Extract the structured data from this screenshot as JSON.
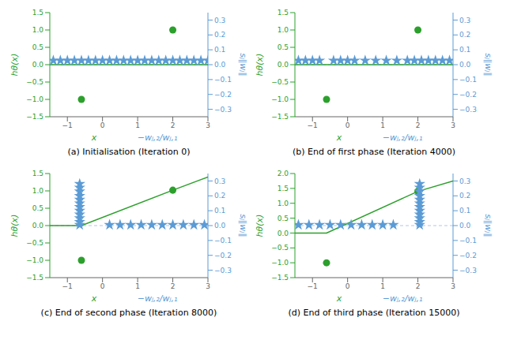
{
  "chart_data": [
    {
      "type": "scatter",
      "title": "(a) Initialisation (Iteration 0)",
      "xlabels": [
        {
          "text": "x",
          "color": "#2ca02c"
        },
        {
          "text": "−wⱼ,₂/wⱼ,₁",
          "color": "#5b9bd5"
        }
      ],
      "ylabel": "hθ(x)",
      "y2label": "sⱼ‖wⱼ‖",
      "xlim": [
        -1.5,
        3.0
      ],
      "xticks": [
        {
          "value": -1,
          "label": "−1"
        },
        0,
        1,
        2,
        3
      ],
      "ylim": [
        -1.5,
        1.5
      ],
      "yticks": [
        {
          "value": -1.5,
          "label": "−1.5"
        },
        {
          "value": -1.0,
          "label": "−1.0"
        },
        {
          "value": -0.5,
          "label": "−0.5"
        },
        {
          "value": 0.0,
          "label": "0.0"
        },
        0.5,
        {
          "value": 1.0,
          "label": "1.0"
        },
        1.5
      ],
      "y2lim": [
        -0.35,
        0.35
      ],
      "y2ticks": [
        {
          "value": -0.3,
          "label": "−0.3"
        },
        {
          "value": -0.2,
          "label": "−0.2"
        },
        {
          "value": -0.1,
          "label": "−0.1"
        },
        {
          "value": 0.0,
          "label": "0.0"
        },
        0.1,
        0.2,
        0.3
      ],
      "reference_lines": [
        {
          "axis": "y2",
          "value": 0,
          "color": "#aec7e8",
          "line_style": "dashed"
        }
      ],
      "series": [
        {
          "type": "line",
          "color": "#2ca02c",
          "x": [
            -1.5,
            3.0
          ],
          "values": [
            0.0,
            0.0
          ]
        },
        {
          "type": "scatter",
          "marker": "circle",
          "color": "#2ca02c",
          "x": [
            -0.6,
            2.0
          ],
          "values": [
            -1.0,
            1.0
          ]
        },
        {
          "type": "scatter",
          "marker": "star",
          "axis": "y2",
          "color": "#5b9bd5",
          "x": [
            -1.4,
            -1.2,
            -1.0,
            -0.8,
            -0.6,
            -0.4,
            -0.2,
            0.0,
            0.2,
            0.4,
            0.6,
            0.8,
            1.0,
            1.2,
            1.4,
            1.6,
            1.8,
            2.0,
            2.2,
            2.4,
            2.6,
            2.8,
            3.0
          ],
          "values": [
            0.028,
            0.028,
            0.028,
            0.028,
            0.028,
            0.028,
            0.028,
            0.028,
            0.028,
            0.028,
            0.028,
            0.028,
            0.028,
            0.028,
            0.028,
            0.028,
            0.028,
            0.028,
            0.028,
            0.028,
            0.028,
            0.028,
            0.028
          ]
        }
      ]
    },
    {
      "type": "scatter",
      "title": "(b) End of first phase (Iteration 4000)",
      "xlabels": [
        {
          "text": "x",
          "color": "#2ca02c"
        },
        {
          "text": "−wⱼ,₂/wⱼ,₁",
          "color": "#5b9bd5"
        }
      ],
      "ylabel": "hθ(x)",
      "y2label": "sⱼ‖wⱼ‖",
      "xlim": [
        -1.5,
        3.0
      ],
      "xticks": [
        {
          "value": -1,
          "label": "−1"
        },
        0,
        1,
        2,
        3
      ],
      "ylim": [
        -1.5,
        1.5
      ],
      "yticks": [
        {
          "value": -1.5,
          "label": "−1.5"
        },
        {
          "value": -1.0,
          "label": "−1.0"
        },
        {
          "value": -0.5,
          "label": "−0.5"
        },
        {
          "value": 0.0,
          "label": "0.0"
        },
        0.5,
        {
          "value": 1.0,
          "label": "1.0"
        },
        1.5
      ],
      "y2lim": [
        -0.35,
        0.35
      ],
      "y2ticks": [
        {
          "value": -0.3,
          "label": "−0.3"
        },
        {
          "value": -0.2,
          "label": "−0.2"
        },
        {
          "value": -0.1,
          "label": "−0.1"
        },
        {
          "value": 0.0,
          "label": "0.0"
        },
        0.1,
        0.2,
        0.3
      ],
      "reference_lines": [
        {
          "axis": "y2",
          "value": 0,
          "color": "#aec7e8",
          "line_style": "dashed"
        }
      ],
      "series": [
        {
          "type": "line",
          "color": "#2ca02c",
          "x": [
            -1.5,
            3.0
          ],
          "values": [
            0.0,
            0.0
          ]
        },
        {
          "type": "scatter",
          "marker": "circle",
          "color": "#2ca02c",
          "x": [
            -0.6,
            2.0
          ],
          "values": [
            -1.0,
            1.0
          ]
        },
        {
          "type": "scatter",
          "marker": "star",
          "axis": "y2",
          "color": "#5b9bd5",
          "x": [
            -1.4,
            -1.2,
            -1.0,
            -0.8,
            -0.4,
            -0.2,
            0.0,
            0.2,
            0.5,
            0.8,
            1.1,
            1.4,
            1.7,
            1.9,
            2.1,
            2.3,
            2.5,
            2.7,
            2.9
          ],
          "values": [
            0.028,
            0.028,
            0.028,
            0.028,
            0.028,
            0.028,
            0.028,
            0.028,
            0.028,
            0.028,
            0.028,
            0.028,
            0.028,
            0.028,
            0.028,
            0.028,
            0.028,
            0.028,
            0.028
          ]
        }
      ]
    },
    {
      "type": "scatter",
      "title": "(c) End of second phase (Iteration 8000)",
      "xlabels": [
        {
          "text": "x",
          "color": "#2ca02c"
        },
        {
          "text": "−wⱼ,₂/wⱼ,₁",
          "color": "#5b9bd5"
        }
      ],
      "ylabel": "hθ(x)",
      "y2label": "sⱼ‖wⱼ‖",
      "xlim": [
        -1.5,
        3.0
      ],
      "xticks": [
        {
          "value": -1,
          "label": "−1"
        },
        0,
        1,
        2,
        3
      ],
      "ylim": [
        -1.5,
        1.5
      ],
      "yticks": [
        {
          "value": -1.5,
          "label": "−1.5"
        },
        {
          "value": -1.0,
          "label": "−1.0"
        },
        {
          "value": -0.5,
          "label": "−0.5"
        },
        {
          "value": 0.0,
          "label": "0.0"
        },
        0.5,
        {
          "value": 1.0,
          "label": "1.0"
        },
        1.5
      ],
      "y2lim": [
        -0.35,
        0.35
      ],
      "y2ticks": [
        {
          "value": -0.3,
          "label": "−0.3"
        },
        {
          "value": -0.2,
          "label": "−0.2"
        },
        {
          "value": -0.1,
          "label": "−0.1"
        },
        {
          "value": 0.0,
          "label": "0.0"
        },
        0.1,
        0.2,
        0.3
      ],
      "reference_lines": [
        {
          "axis": "y2",
          "value": 0,
          "color": "#aec7e8",
          "line_style": "dashed"
        }
      ],
      "series": [
        {
          "type": "line",
          "color": "#2ca02c",
          "x": [
            -1.5,
            -0.6,
            2.0,
            3.0
          ],
          "values": [
            0.0,
            0.0,
            1.02,
            1.4
          ]
        },
        {
          "type": "scatter",
          "marker": "circle",
          "color": "#2ca02c",
          "x": [
            -0.6,
            2.0
          ],
          "values": [
            -1.0,
            1.02
          ]
        },
        {
          "type": "scatter",
          "marker": "star",
          "axis": "y2",
          "color": "#5b9bd5",
          "x": [
            -0.65,
            -0.65,
            -0.65,
            -0.65,
            -0.65,
            -0.65,
            -0.65,
            -0.65,
            -0.65,
            -0.65,
            -0.65,
            -0.65,
            0.2,
            0.5,
            0.8,
            1.1,
            1.4,
            1.7,
            2.0,
            2.3,
            2.6,
            2.9
          ],
          "values": [
            0.28,
            0.255,
            0.23,
            0.2,
            0.175,
            0.15,
            0.125,
            0.1,
            0.075,
            0.05,
            0.025,
            0.005,
            0.005,
            0.005,
            0.005,
            0.005,
            0.005,
            0.005,
            0.005,
            0.005,
            0.005,
            0.005
          ]
        }
      ]
    },
    {
      "type": "scatter",
      "title": "(d) End of third phase (Iteration 15000)",
      "xlabels": [
        {
          "text": "x",
          "color": "#2ca02c"
        },
        {
          "text": "−wⱼ,₂/wⱼ,₁",
          "color": "#5b9bd5"
        }
      ],
      "ylabel": "hθ(x)",
      "y2label": "sⱼ‖wⱼ‖",
      "xlim": [
        -1.5,
        3.0
      ],
      "xticks": [
        {
          "value": -1,
          "label": "−1"
        },
        0,
        1,
        2,
        3
      ],
      "ylim": [
        -1.5,
        2.0
      ],
      "yticks": [
        {
          "value": -1.5,
          "label": "−1.5"
        },
        {
          "value": -1.0,
          "label": "−1.0"
        },
        {
          "value": -0.5,
          "label": "−0.5"
        },
        {
          "value": 0.0,
          "label": "0.0"
        },
        0.5,
        {
          "value": 1.0,
          "label": "1.0"
        },
        1.5,
        {
          "value": 2.0,
          "label": "2.0"
        }
      ],
      "y2lim": [
        -0.35,
        0.35
      ],
      "y2ticks": [
        {
          "value": -0.3,
          "label": "−0.3"
        },
        {
          "value": -0.2,
          "label": "−0.2"
        },
        {
          "value": -0.1,
          "label": "−0.1"
        },
        {
          "value": 0.0,
          "label": "0.0"
        },
        0.1,
        0.2,
        0.3
      ],
      "reference_lines": [
        {
          "axis": "y2",
          "value": 0,
          "color": "#aec7e8",
          "line_style": "dashed"
        }
      ],
      "series": [
        {
          "type": "line",
          "color": "#2ca02c",
          "x": [
            -1.5,
            -0.6,
            2.0,
            3.0
          ],
          "values": [
            0.0,
            0.0,
            1.4,
            1.75
          ]
        },
        {
          "type": "scatter",
          "marker": "circle",
          "color": "#2ca02c",
          "x": [
            -0.6,
            2.0
          ],
          "values": [
            -1.0,
            1.4
          ]
        },
        {
          "type": "scatter",
          "marker": "star",
          "axis": "y2",
          "color": "#5b9bd5",
          "x": [
            -1.4,
            -1.1,
            -0.8,
            -0.5,
            -0.2,
            0.1,
            0.4,
            0.7,
            1.0,
            1.3,
            2.05,
            2.05,
            2.05,
            2.05,
            2.05,
            2.05,
            2.05,
            2.05,
            2.05,
            2.05,
            2.05,
            2.05
          ],
          "values": [
            0.005,
            0.005,
            0.005,
            0.005,
            0.005,
            0.005,
            0.005,
            0.005,
            0.005,
            0.005,
            0.28,
            0.255,
            0.23,
            0.2,
            0.175,
            0.15,
            0.125,
            0.1,
            0.075,
            0.05,
            0.025,
            0.005
          ]
        }
      ]
    }
  ]
}
